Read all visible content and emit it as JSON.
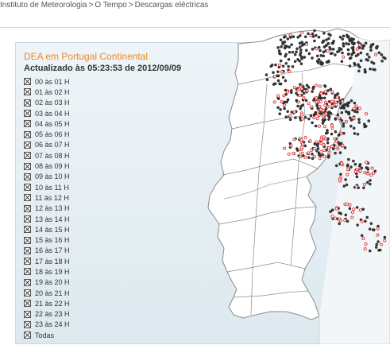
{
  "breadcrumb": [
    "Instituto de Meteorologia",
    "O Tempo",
    "Descargas eléctricas"
  ],
  "breadcrumb_separator": ">",
  "panel": {
    "title": "DEA em Portugal Continental",
    "updated": "Actualizado às 05:23:53 de 2012/09/09"
  },
  "hours": [
    "00 às 01 H",
    "01 às 02 H",
    "02 às 03 H",
    "03 às 04 H",
    "04 às 05 H",
    "05 às 06 H",
    "06 às 07 H",
    "07 às 08 H",
    "08 às 09 H",
    "09 às 10 H",
    "10 às 11 H",
    "11 às 12 H",
    "12 às 13 H",
    "13 às 14 H",
    "14 às 15 H",
    "15 às 16 H",
    "16 às 17 H",
    "17 às 18 H",
    "18 às 19 H",
    "19 às 20 H",
    "20 às 21 H",
    "21 às 22 H",
    "22 às 23 H",
    "23 às 24 H",
    "Todas"
  ],
  "colors": {
    "title": "#f08a1c",
    "land": "#ffffff",
    "sea": "#e4eef3",
    "border": "#7a7a7a",
    "strike_dark": "#3a3a3a",
    "strike_red": "#e23a3a"
  },
  "icons": {
    "checkbox": "checkbox-checked-icon"
  }
}
